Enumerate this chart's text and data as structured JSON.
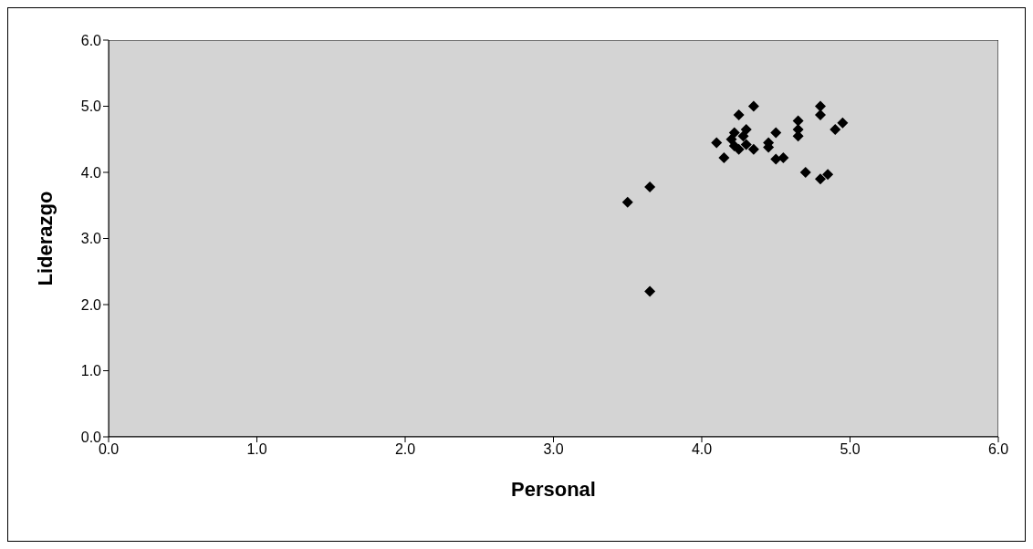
{
  "chart_data": {
    "type": "scatter",
    "xlabel": "Personal",
    "ylabel": "Liderazgo",
    "x": [
      3.5,
      3.65,
      3.65,
      4.1,
      4.15,
      4.2,
      4.22,
      4.22,
      4.25,
      4.25,
      4.28,
      4.3,
      4.3,
      4.35,
      4.35,
      4.45,
      4.45,
      4.5,
      4.5,
      4.55,
      4.65,
      4.65,
      4.65,
      4.7,
      4.8,
      4.8,
      4.8,
      4.85,
      4.9,
      4.95
    ],
    "values": [
      3.55,
      3.78,
      2.2,
      4.45,
      4.22,
      4.5,
      4.4,
      4.6,
      4.87,
      4.35,
      4.55,
      4.65,
      4.42,
      4.35,
      5.0,
      4.45,
      4.38,
      4.6,
      4.2,
      4.22,
      4.78,
      4.65,
      4.55,
      4.0,
      5.0,
      4.87,
      3.9,
      3.97,
      4.65,
      4.75
    ],
    "color": "#000000",
    "marker": "diamond",
    "grid": false,
    "legend": false,
    "xlim": [
      0,
      6
    ],
    "xticks": [
      {
        "value": 0,
        "label": "0.0"
      },
      {
        "value": 1,
        "label": "1.0"
      },
      {
        "value": 2,
        "label": "2.0"
      },
      {
        "value": 3,
        "label": "3.0"
      },
      {
        "value": 4,
        "label": "4.0"
      },
      {
        "value": 5,
        "label": "5.0"
      },
      {
        "value": 6,
        "label": "6.0"
      }
    ],
    "ylim": [
      0,
      6
    ],
    "yticks": [
      {
        "value": 0,
        "label": "0.0"
      },
      {
        "value": 1,
        "label": "1.0"
      },
      {
        "value": 2,
        "label": "2.0"
      },
      {
        "value": 3,
        "label": "3.0"
      },
      {
        "value": 4,
        "label": "4.0"
      },
      {
        "value": 5,
        "label": "5.0"
      },
      {
        "value": 6,
        "label": "6.0"
      }
    ]
  }
}
